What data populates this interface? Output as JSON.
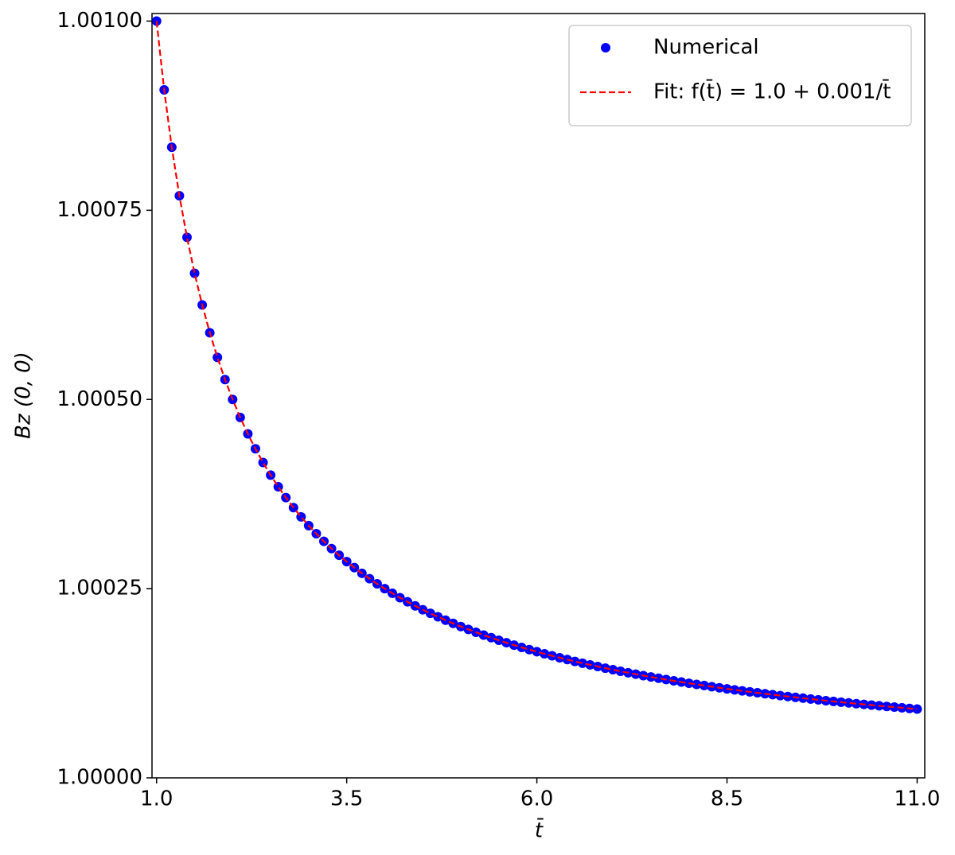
{
  "chart_data": {
    "type": "scatter",
    "x_label": "t̄",
    "y_label": "Bz (0, 0)",
    "x": [
      1.0,
      1.1,
      1.2,
      1.3,
      1.4,
      1.5,
      1.6,
      1.7,
      1.8,
      1.9,
      2.0,
      2.1,
      2.2,
      2.3,
      2.4,
      2.5,
      2.6,
      2.7,
      2.8,
      2.9,
      3.0,
      3.1,
      3.2,
      3.3,
      3.4,
      3.5,
      3.6,
      3.7,
      3.8,
      3.9,
      4.0,
      4.1,
      4.2,
      4.3,
      4.4,
      4.5,
      4.6,
      4.7,
      4.8,
      4.9,
      5.0,
      5.1,
      5.2,
      5.3,
      5.4,
      5.5,
      5.6,
      5.7,
      5.8,
      5.9,
      6.0,
      6.1,
      6.2,
      6.3,
      6.4,
      6.5,
      6.6,
      6.7,
      6.8,
      6.9,
      7.0,
      7.1,
      7.2,
      7.3,
      7.4,
      7.5,
      7.6,
      7.7,
      7.8,
      7.9,
      8.0,
      8.1,
      8.2,
      8.3,
      8.4,
      8.5,
      8.6,
      8.7,
      8.8,
      8.9,
      9.0,
      9.1,
      9.2,
      9.3,
      9.4,
      9.5,
      9.6,
      9.7,
      9.8,
      9.9,
      10.0,
      10.1,
      10.2,
      10.3,
      10.4,
      10.5,
      10.6,
      10.7,
      10.8,
      10.9,
      11.0
    ],
    "series": [
      {
        "name": "Numerical",
        "type": "scatter",
        "color": "#0000ff",
        "values": [
          1.001,
          1.0009091,
          1.0008333,
          1.0007692,
          1.0007143,
          1.0006667,
          1.000625,
          1.0005882,
          1.0005556,
          1.0005263,
          1.0005,
          1.0004762,
          1.0004545,
          1.0004348,
          1.0004167,
          1.0004,
          1.0003846,
          1.0003704,
          1.0003571,
          1.0003448,
          1.0003333,
          1.0003226,
          1.0003125,
          1.000303,
          1.0002941,
          1.0002857,
          1.0002778,
          1.0002703,
          1.0002632,
          1.0002564,
          1.00025,
          1.0002439,
          1.0002381,
          1.0002326,
          1.0002273,
          1.0002222,
          1.0002174,
          1.0002128,
          1.0002083,
          1.0002041,
          1.0002,
          1.0001961,
          1.0001923,
          1.0001887,
          1.0001852,
          1.0001818,
          1.0001786,
          1.0001754,
          1.0001724,
          1.0001695,
          1.0001667,
          1.0001639,
          1.0001613,
          1.0001587,
          1.0001563,
          1.0001538,
          1.0001515,
          1.0001493,
          1.0001471,
          1.0001449,
          1.0001429,
          1.0001408,
          1.0001389,
          1.000137,
          1.0001351,
          1.0001333,
          1.0001316,
          1.0001299,
          1.0001282,
          1.0001266,
          1.000125,
          1.0001235,
          1.000122,
          1.0001205,
          1.000119,
          1.0001176,
          1.0001163,
          1.0001149,
          1.0001136,
          1.0001124,
          1.0001111,
          1.0001099,
          1.0001087,
          1.0001075,
          1.0001064,
          1.0001053,
          1.0001042,
          1.0001031,
          1.000102,
          1.000101,
          1.0001,
          1.000099,
          1.000098,
          1.0000971,
          1.0000962,
          1.0000952,
          1.0000943,
          1.0000935,
          1.0000926,
          1.0000917,
          1.0000909
        ]
      },
      {
        "name": "Fit: f(t̄) = 1.0 + 0.001/t̄",
        "type": "line",
        "linestyle": "dashed",
        "color": "#ff0000",
        "values": [
          1.001,
          1.0009091,
          1.0008333,
          1.0007692,
          1.0007143,
          1.0006667,
          1.000625,
          1.0005882,
          1.0005556,
          1.0005263,
          1.0005,
          1.0004762,
          1.0004545,
          1.0004348,
          1.0004167,
          1.0004,
          1.0003846,
          1.0003704,
          1.0003571,
          1.0003448,
          1.0003333,
          1.0003226,
          1.0003125,
          1.000303,
          1.0002941,
          1.0002857,
          1.0002778,
          1.0002703,
          1.0002632,
          1.0002564,
          1.00025,
          1.0002439,
          1.0002381,
          1.0002326,
          1.0002273,
          1.0002222,
          1.0002174,
          1.0002128,
          1.0002083,
          1.0002041,
          1.0002,
          1.0001961,
          1.0001923,
          1.0001887,
          1.0001852,
          1.0001818,
          1.0001786,
          1.0001754,
          1.0001724,
          1.0001695,
          1.0001667,
          1.0001639,
          1.0001613,
          1.0001587,
          1.0001563,
          1.0001538,
          1.0001515,
          1.0001493,
          1.0001471,
          1.0001449,
          1.0001429,
          1.0001408,
          1.0001389,
          1.000137,
          1.0001351,
          1.0001333,
          1.0001316,
          1.0001299,
          1.0001282,
          1.0001266,
          1.000125,
          1.0001235,
          1.000122,
          1.0001205,
          1.000119,
          1.0001176,
          1.0001163,
          1.0001149,
          1.0001136,
          1.0001124,
          1.0001111,
          1.0001099,
          1.0001087,
          1.0001075,
          1.0001064,
          1.0001053,
          1.0001042,
          1.0001031,
          1.000102,
          1.000101,
          1.0001,
          1.000099,
          1.000098,
          1.0000971,
          1.0000962,
          1.0000952,
          1.0000943,
          1.0000935,
          1.0000926,
          1.0000917,
          1.0000909
        ]
      }
    ],
    "xlim": [
      0.94,
      11.1
    ],
    "ylim": [
      1.0,
      1.00101
    ],
    "xticks": [
      {
        "value": 1.0,
        "label": "1.0"
      },
      3.5,
      {
        "value": 6.0,
        "label": "6.0"
      },
      8.5,
      {
        "value": 11.0,
        "label": "11.0"
      }
    ],
    "yticks": [
      {
        "value": 1.0,
        "label": "1.00000"
      },
      {
        "value": 1.00025,
        "label": "1.00025"
      },
      {
        "value": 1.0005,
        "label": "1.00050"
      },
      {
        "value": 1.00075,
        "label": "1.00075"
      },
      {
        "value": 1.001,
        "label": "1.00100"
      }
    ],
    "grid": false,
    "legend": "upper right"
  }
}
